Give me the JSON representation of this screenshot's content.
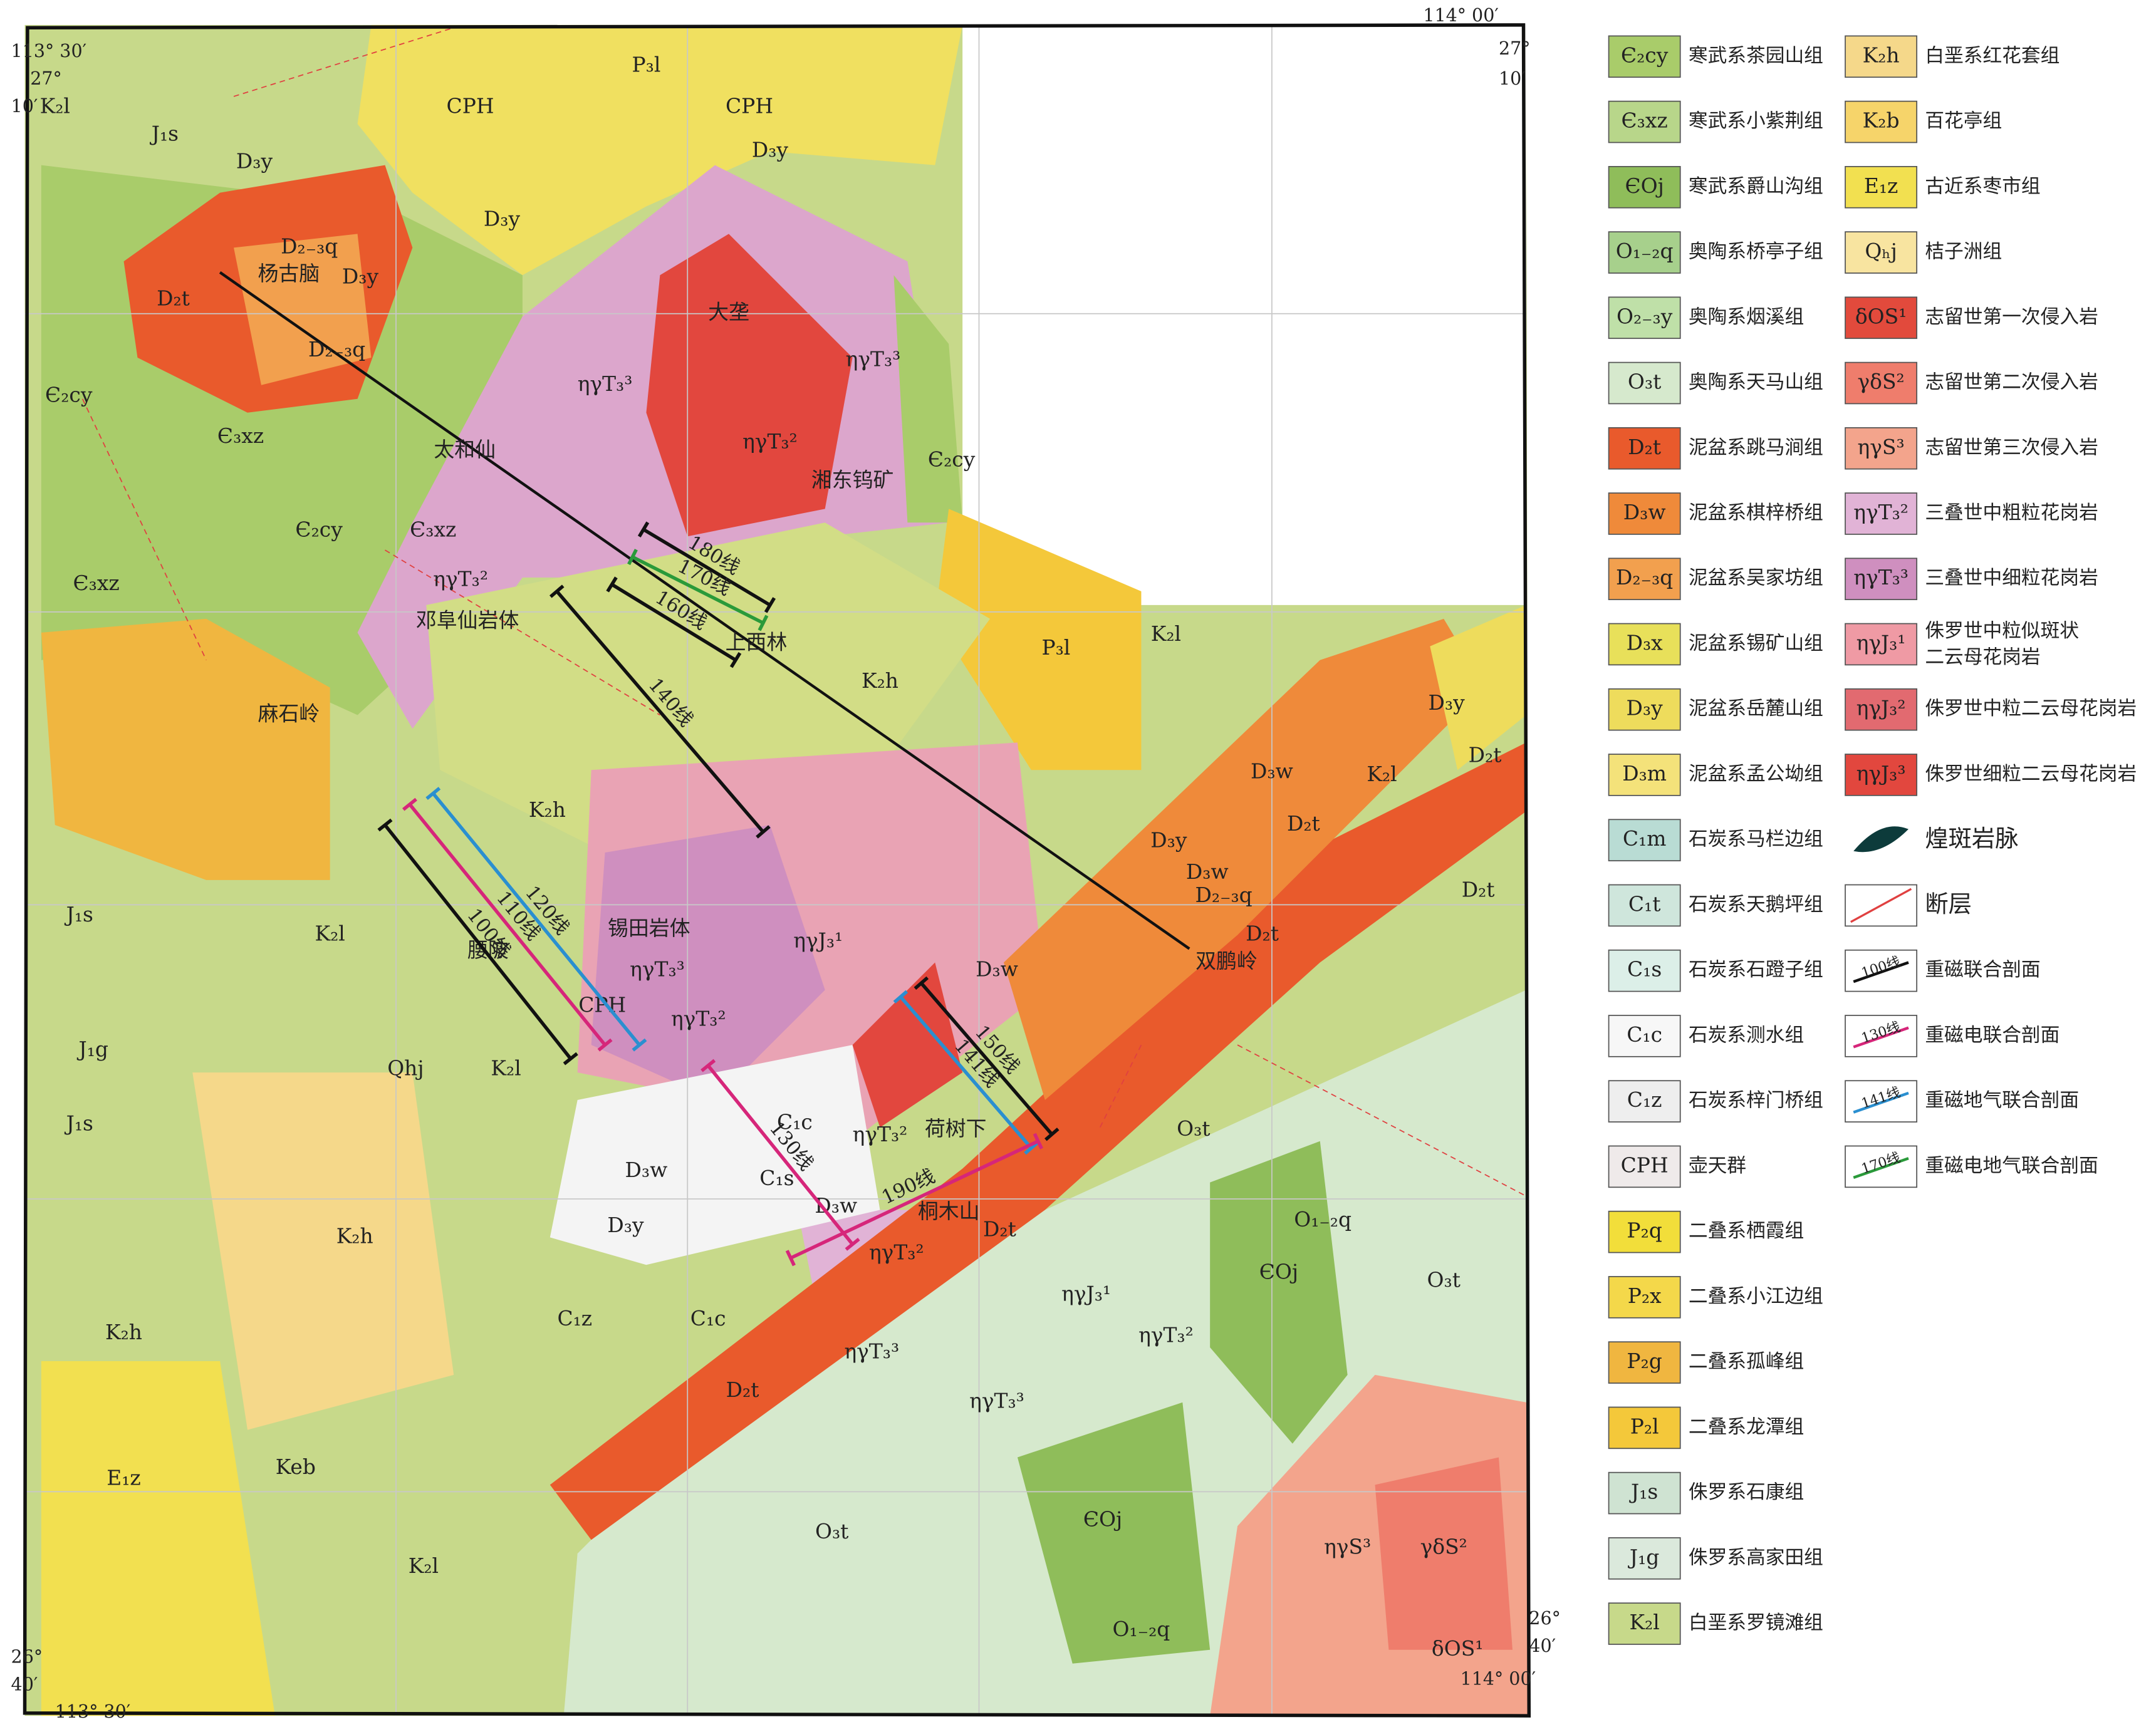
{
  "corners": {
    "tl_lon": "113° 30′",
    "tl_lat_deg": "27°",
    "tl_lat_min": "10′",
    "tr_lon": "114° 00′",
    "tr_lat_deg": "27°",
    "tr_lat_min": "10′",
    "bl_lat_deg": "26°",
    "bl_lat_min": "40′",
    "bl_lon": "113° 30′",
    "br_lat_deg": "26°",
    "br_lat_min": "40′",
    "br_lon": "114° 00′"
  },
  "legend_left": [
    {
      "code": "Є₂cy",
      "name": "寒武系茶园山组",
      "color": "#a9cc6a"
    },
    {
      "code": "Є₃xz",
      "name": "寒武系小紫荆组",
      "color": "#b8d68a"
    },
    {
      "code": "ЄOj",
      "name": "寒武系爵山沟组",
      "color": "#8fbd5a"
    },
    {
      "code": "O₁₋₂q",
      "name": "奥陶系桥亭子组",
      "color": "#a7d08c"
    },
    {
      "code": "O₂₋₃y",
      "name": "奥陶系烟溪组",
      "color": "#bfe0a8"
    },
    {
      "code": "O₃t",
      "name": "奥陶系天马山组",
      "color": "#d6e9cd"
    },
    {
      "code": "D₂t",
      "name": "泥盆系跳马涧组",
      "color": "#e95a2c"
    },
    {
      "code": "D₃w",
      "name": "泥盆系棋梓桥组",
      "color": "#ef8a3a"
    },
    {
      "code": "D₂₋₃q",
      "name": "泥盆系吴家坊组",
      "color": "#f2a04e"
    },
    {
      "code": "D₃x",
      "name": "泥盆系锡矿山组",
      "color": "#e8e05a"
    },
    {
      "code": "D₃y",
      "name": "泥盆系岳麓山组",
      "color": "#eedc5c"
    },
    {
      "code": "D₃m",
      "name": "泥盆系孟公坳组",
      "color": "#f4e27a"
    },
    {
      "code": "C₁m",
      "name": "石炭系马栏边组",
      "color": "#b9dcd4"
    },
    {
      "code": "C₁t",
      "name": "石炭系天鹅坪组",
      "color": "#cfe6dc"
    },
    {
      "code": "C₁s",
      "name": "石炭系石蹬子组",
      "color": "#dcefe8"
    },
    {
      "code": "C₁c",
      "name": "石炭系测水组",
      "color": "#f7f7f7"
    },
    {
      "code": "C₁z",
      "name": "石炭系梓门桥组",
      "color": "#eeeeee"
    },
    {
      "code": "CPH",
      "name": "壶天群",
      "color": "#efeaea"
    },
    {
      "code": "P₂q",
      "name": "二叠系栖霞组",
      "color": "#f2de3a"
    },
    {
      "code": "P₂x",
      "name": "二叠系小江边组",
      "color": "#f4d84a"
    },
    {
      "code": "P₂g",
      "name": "二叠系孤峰组",
      "color": "#f0b640"
    },
    {
      "code": "P₂l",
      "name": "二叠系龙潭组",
      "color": "#f4c83a"
    },
    {
      "code": "J₁s",
      "name": "侏罗系石康组",
      "color": "#cfe3d2"
    },
    {
      "code": "J₁g",
      "name": "侏罗系高家田组",
      "color": "#dbe9dc"
    },
    {
      "code": "K₂l",
      "name": "白垩系罗镜滩组",
      "color": "#c7d98a"
    }
  ],
  "legend_right": [
    {
      "code": "K₂h",
      "name": "白垩系红花套组",
      "color": "#f5d88a"
    },
    {
      "code": "K₂b",
      "name": "百花亭组",
      "color": "#f6d46a"
    },
    {
      "code": "E₁z",
      "name": "古近系枣市组",
      "color": "#f2e050"
    },
    {
      "code": "Qₕj",
      "name": "桔子洲组",
      "color": "#f8e4a0"
    },
    {
      "code": "δOS¹",
      "name": "志留世第一次侵入岩",
      "color": "#e24a3c"
    },
    {
      "code": "γδS²",
      "name": "志留世第二次侵入岩",
      "color": "#ef7d6c"
    },
    {
      "code": "ηγS³",
      "name": "志留世第三次侵入岩",
      "color": "#f3a48c"
    },
    {
      "code": "ηγT₃²",
      "name": "三叠世中粗粒花岗岩",
      "color": "#e1b3d6"
    },
    {
      "code": "ηγT₃³",
      "name": "三叠世中细粒花岗岩",
      "color": "#cf8fbf"
    },
    {
      "code": "ηγJ₃¹",
      "name": "侏罗世中粒似斑状",
      "name2": "二云母花岗岩",
      "color": "#ef9aa4"
    },
    {
      "code": "ηγJ₃²",
      "name": "侏罗世中粒二云母花岗岩",
      "color": "#e26a70"
    },
    {
      "code": "ηγJ₃³",
      "name": "侏罗世细粒二云母花岗岩",
      "color": "#e2473e"
    }
  ],
  "legend_symbols": [
    {
      "name": "煌斑岩脉"
    },
    {
      "name": "断层"
    },
    {
      "code": "100线",
      "name": "重磁联合剖面",
      "color": "#111111"
    },
    {
      "code": "130线",
      "name": "重磁电联合剖面",
      "color": "#d6267a"
    },
    {
      "code": "141线",
      "name": "重磁地气联合剖面",
      "color": "#2a8fd0"
    },
    {
      "code": "170线",
      "name": "重磁电地气联合剖面",
      "color": "#2a9a3a"
    }
  ],
  "profiles": [
    {
      "label": "180线",
      "color": "#111111"
    },
    {
      "label": "170线",
      "color": "#2a9a3a"
    },
    {
      "label": "160线",
      "color": "#111111"
    },
    {
      "label": "140线",
      "color": "#111111"
    },
    {
      "label": "120线",
      "color": "#2a8fd0"
    },
    {
      "label": "110线",
      "color": "#d6267a"
    },
    {
      "label": "100线",
      "color": "#111111"
    },
    {
      "label": "130线",
      "color": "#d6267a"
    },
    {
      "label": "150线",
      "color": "#111111"
    },
    {
      "label": "141线",
      "color": "#2a8fd0"
    },
    {
      "label": "190线",
      "color": "#d6267a"
    }
  ],
  "map_labels": [
    "K₂l",
    "J₁s",
    "D₃y",
    "CPH",
    "P₃l",
    "CPH",
    "D₃y",
    "D₃y",
    "D₂₋₃q",
    "杨古脑",
    "D₂t",
    "D₃y",
    "大垄",
    "ηγT₃³",
    "ηγT₃³",
    "ηγT₃²",
    "D₂₋₃q",
    "Є₂cy",
    "太和仙",
    "湘东钨矿",
    "Є₂cy",
    "Є₃xz",
    "Є₂cy",
    "Є₃xz",
    "Є₃xz",
    "ηγT₃²",
    "邓阜仙岩体",
    "上西林",
    "P₃l",
    "K₂l",
    "K₂h",
    "麻石岭",
    "K₂h",
    "D₃y",
    "D₂t",
    "D₃w",
    "K₂l",
    "D₂t",
    "D₃y",
    "D₃w",
    "D₂₋₃q",
    "D₂t",
    "D₂t",
    "锡田岩体",
    "ηγJ₃¹",
    "腰陂",
    "ηγT₃³",
    "CPH",
    "ηγT₃²",
    "J₁s",
    "K₂l",
    "双鹏岭",
    "D₃w",
    "J₁g",
    "Qhj",
    "K₂l",
    "J₁s",
    "荷树下",
    "C₁c",
    "ηγT₃²",
    "O₃t",
    "C₁s",
    "D₃w",
    "D₃y",
    "D₃w",
    "桐木山",
    "D₂t",
    "ηγT₃²",
    "O₁₋₂q",
    "ЄOj",
    "O₃t",
    "K₂h",
    "ηγJ₃¹",
    "ηγT₃²",
    "C₁z",
    "C₁c",
    "ηγT₃³",
    "ηγT₃³",
    "D₂t",
    "K₂h",
    "Keb",
    "E₁z",
    "O₃t",
    "ЄOj",
    "K₂l",
    "ηγS³",
    "γδS²",
    "O₁₋₂q",
    "δOS¹"
  ]
}
